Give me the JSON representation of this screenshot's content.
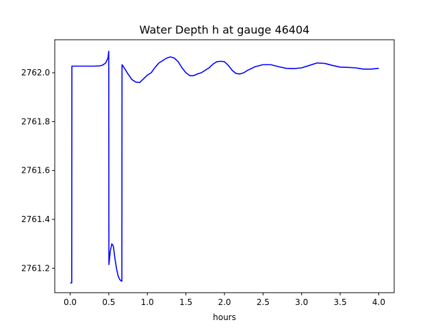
{
  "chart_data": {
    "type": "line",
    "title": "Water Depth h at gauge 46404",
    "xlabel": "hours",
    "ylabel": "",
    "xlim": [
      -0.2,
      4.2
    ],
    "ylim": [
      2761.1,
      2762.135
    ],
    "xticks": [
      0.0,
      0.5,
      1.0,
      1.5,
      2.0,
      2.5,
      3.0,
      3.5,
      4.0
    ],
    "xtick_labels": [
      "0.0",
      "0.5",
      "1.0",
      "1.5",
      "2.0",
      "2.5",
      "3.0",
      "3.5",
      "4.0"
    ],
    "yticks": [
      2761.2,
      2761.4,
      2761.6,
      2761.8,
      2762.0
    ],
    "ytick_labels": [
      "2761.2",
      "2761.4",
      "2761.6",
      "2761.8",
      "2762.0"
    ],
    "grid": false,
    "legend": "none",
    "colors": {
      "series": "#0000ff"
    },
    "series": [
      {
        "x": [
          0.0,
          0.02,
          0.022,
          0.1,
          0.2,
          0.3,
          0.38,
          0.42,
          0.46,
          0.49,
          0.5,
          0.502,
          0.52,
          0.54,
          0.56,
          0.58,
          0.6,
          0.62,
          0.64,
          0.66,
          0.67,
          0.672,
          0.7,
          0.75,
          0.8,
          0.85,
          0.9,
          0.95,
          1.0,
          1.05,
          1.1,
          1.15,
          1.2,
          1.25,
          1.3,
          1.35,
          1.4,
          1.45,
          1.5,
          1.55,
          1.6,
          1.65,
          1.7,
          1.75,
          1.8,
          1.85,
          1.9,
          1.95,
          2.0,
          2.05,
          2.1,
          2.15,
          2.2,
          2.25,
          2.3,
          2.4,
          2.5,
          2.6,
          2.7,
          2.8,
          2.9,
          3.0,
          3.1,
          3.2,
          3.3,
          3.4,
          3.5,
          3.6,
          3.7,
          3.8,
          3.9,
          4.0
        ],
        "y": [
          2761.14,
          2761.14,
          2762.027,
          2762.027,
          2762.027,
          2762.027,
          2762.028,
          2762.031,
          2762.04,
          2762.06,
          2762.088,
          2761.215,
          2761.27,
          2761.3,
          2761.29,
          2761.24,
          2761.2,
          2761.17,
          2761.155,
          2761.148,
          2761.147,
          2762.033,
          2762.02,
          2761.995,
          2761.972,
          2761.962,
          2761.96,
          2761.975,
          2761.99,
          2762.0,
          2762.022,
          2762.04,
          2762.05,
          2762.06,
          2762.065,
          2762.06,
          2762.045,
          2762.02,
          2762.0,
          2761.988,
          2761.988,
          2761.995,
          2762.0,
          2762.01,
          2762.02,
          2762.035,
          2762.045,
          2762.047,
          2762.045,
          2762.03,
          2762.01,
          2761.997,
          2761.995,
          2762.0,
          2762.01,
          2762.025,
          2762.033,
          2762.033,
          2762.025,
          2762.018,
          2762.017,
          2762.02,
          2762.03,
          2762.04,
          2762.038,
          2762.03,
          2762.023,
          2762.022,
          2762.02,
          2762.015,
          2762.015,
          2762.018
        ]
      }
    ]
  }
}
